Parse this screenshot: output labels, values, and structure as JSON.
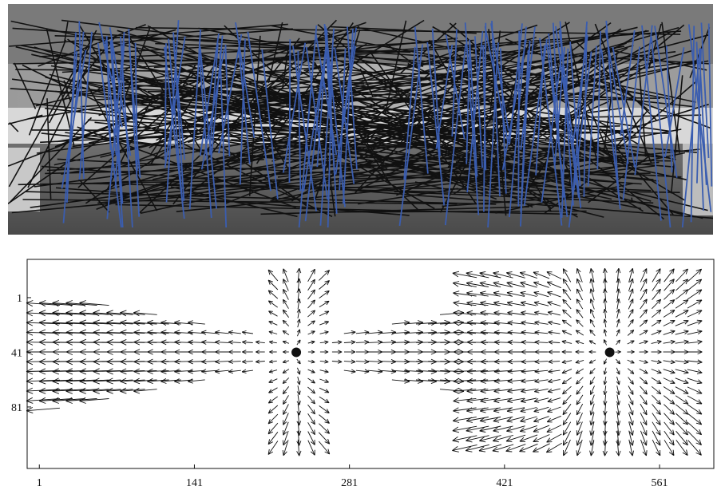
{
  "figure": {
    "top_panel": {
      "kind": "grayscale photograph of an interior hall overlaid with many straight line segments",
      "line_colors": {
        "outlier_lines": "#111111",
        "inlier_lines": "#3a5db0"
      },
      "background_tone": "#8a8a8a"
    },
    "bottom_panel": {
      "kind": "quiver plot of a 2D vector field with two singular points",
      "point_color": "#111111"
    }
  },
  "chart_data": {
    "type": "quiver",
    "title": "",
    "xlabel": "",
    "ylabel": "",
    "x_ticks": [
      "1",
      "141",
      "281",
      "421",
      "561"
    ],
    "y_ticks": [
      "1",
      "41",
      "81"
    ],
    "xlim": [
      -10,
      610
    ],
    "ylim": [
      -27,
      126
    ],
    "y_axis_inverted": true,
    "singular_points": [
      {
        "x": 233,
        "y": 41
      },
      {
        "x": 516,
        "y": 41
      }
    ],
    "grid": false
  }
}
